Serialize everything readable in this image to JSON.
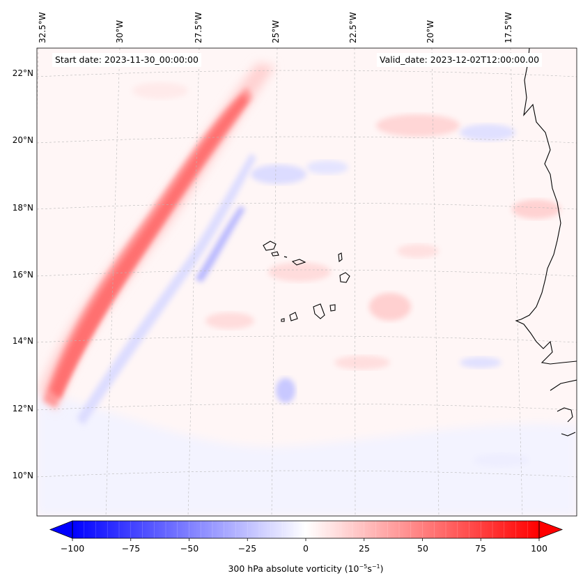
{
  "map": {
    "start_date_text": "Start date: 2023-11-30_00:00:00",
    "valid_date_text": "Valid_date: 2023-12-02T12:00:00.00",
    "field": "300 hPa absolute vorticity",
    "longitude_labels": [
      "32.5°W",
      "30°W",
      "27.5°W",
      "25°W",
      "22.5°W",
      "20°W",
      "17.5°W"
    ],
    "latitude_labels": [
      "22°N",
      "20°N",
      "18°N",
      "16°N",
      "14°N",
      "12°N",
      "10°N"
    ],
    "colormap": "bwr",
    "colors": {
      "min": "#0000ff",
      "mid": "#ffffff",
      "max": "#ff0000",
      "coast": "#000000",
      "grid": "#b0b0b0"
    }
  },
  "colorbar": {
    "label_main": "300 hPa absolute vorticity (10",
    "label_exp1": "−5",
    "label_mid": "s",
    "label_exp2": "−1",
    "label_end": ")",
    "range": [
      -100,
      100
    ],
    "extend": "both",
    "ticks": [
      "−100",
      "−75",
      "−50",
      "−25",
      "0",
      "25",
      "50",
      "75",
      "100"
    ]
  }
}
